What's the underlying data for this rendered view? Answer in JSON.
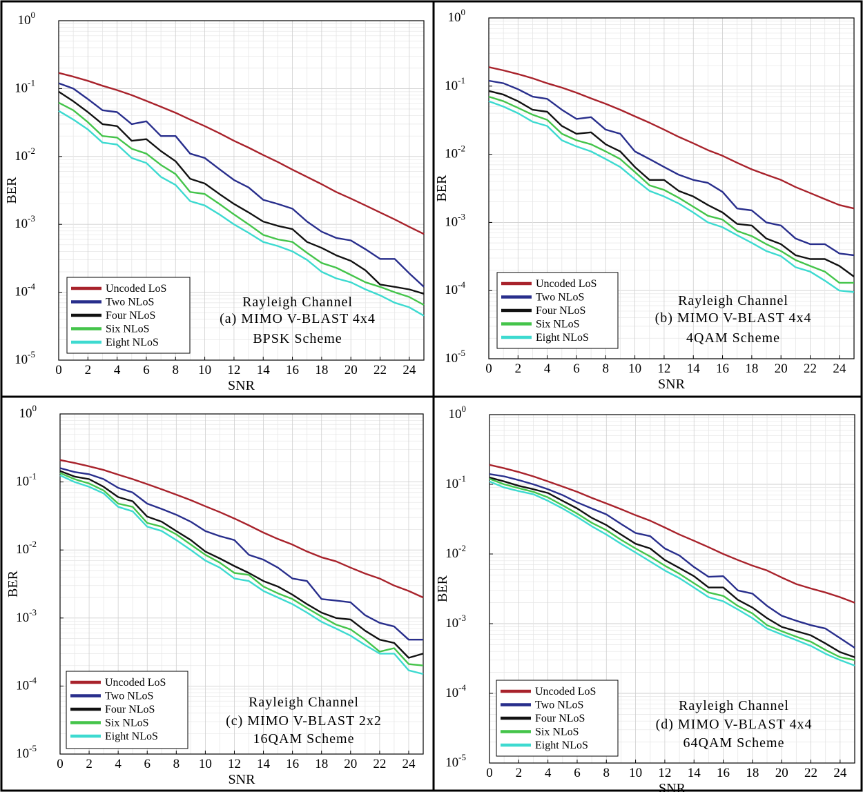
{
  "chart_data": [
    {
      "type": "line",
      "yscale": "log",
      "xlabel": "SNR",
      "ylabel": "BER",
      "xlim": [
        0,
        25
      ],
      "ylim": [
        1e-05,
        1
      ],
      "grid": true,
      "legend_placement": "bottom-left",
      "xticks": [
        "0",
        "2",
        "4",
        "6",
        "8",
        "10",
        "12",
        "14",
        "16",
        "18",
        "20",
        "22",
        "24"
      ],
      "yticks": [
        {
          "base": "10",
          "exp": "0"
        },
        {
          "base": "10",
          "exp": "-1"
        },
        {
          "base": "10",
          "exp": "-2"
        },
        {
          "base": "10",
          "exp": "-3"
        },
        {
          "base": "10",
          "exp": "-4"
        },
        {
          "base": "10",
          "exp": "-5"
        }
      ],
      "annotation": [
        "Rayleigh Channel",
        "(a) MIMO V-BLAST 4x4",
        "BPSK Scheme"
      ],
      "x": [
        0,
        1,
        2,
        3,
        4,
        5,
        6,
        7,
        8,
        9,
        10,
        11,
        12,
        13,
        14,
        15,
        16,
        17,
        18,
        19,
        20,
        21,
        22,
        23,
        24,
        25
      ],
      "series": [
        {
          "name": "Uncoded LoS",
          "color": "#a8222b",
          "values": [
            0.17,
            0.15,
            0.13,
            0.11,
            0.095,
            0.08,
            0.066,
            0.054,
            0.044,
            0.035,
            0.028,
            0.022,
            0.017,
            0.0135,
            0.0105,
            0.0083,
            0.0064,
            0.005,
            0.0039,
            0.003,
            0.0024,
            0.0019,
            0.0015,
            0.00118,
            0.00092,
            0.00072
          ]
        },
        {
          "name": "Two NLoS",
          "color": "#282e8c",
          "values": [
            0.12,
            0.1,
            0.07,
            0.048,
            0.045,
            0.03,
            0.033,
            0.02,
            0.02,
            0.011,
            0.0095,
            0.0065,
            0.0045,
            0.0035,
            0.0023,
            0.002,
            0.0017,
            0.0011,
            0.00078,
            0.00063,
            0.00058,
            0.00043,
            0.00031,
            0.00031,
            0.00019,
            0.00012
          ]
        },
        {
          "name": "Four NLoS",
          "color": "#111111",
          "values": [
            0.09,
            0.065,
            0.045,
            0.03,
            0.028,
            0.017,
            0.018,
            0.012,
            0.0085,
            0.0047,
            0.004,
            0.0028,
            0.002,
            0.0015,
            0.0011,
            0.00095,
            0.00085,
            0.00055,
            0.00045,
            0.00035,
            0.00029,
            0.00021,
            0.00013,
            0.00012,
            0.00011,
            9.5e-05
          ]
        },
        {
          "name": "Six NLoS",
          "color": "#44c44a",
          "values": [
            0.062,
            0.048,
            0.032,
            0.02,
            0.019,
            0.013,
            0.011,
            0.0075,
            0.0055,
            0.003,
            0.0028,
            0.002,
            0.0014,
            0.001,
            0.0007,
            0.0006,
            0.00055,
            0.00038,
            0.00027,
            0.00023,
            0.00018,
            0.00014,
            0.00012,
            0.0001,
            8.5e-05,
            6.5e-05
          ]
        },
        {
          "name": "Eight NLoS",
          "color": "#3ddad0",
          "values": [
            0.047,
            0.035,
            0.025,
            0.016,
            0.015,
            0.0095,
            0.008,
            0.005,
            0.0038,
            0.0022,
            0.0019,
            0.0014,
            0.001,
            0.00075,
            0.00055,
            0.00048,
            0.0004,
            0.0003,
            0.0002,
            0.00016,
            0.00014,
            0.00011,
            9e-05,
            7e-05,
            6e-05,
            4.5e-05
          ]
        }
      ]
    },
    {
      "type": "line",
      "yscale": "log",
      "xlabel": "SNR",
      "ylabel": "BER",
      "xlim": [
        0,
        25
      ],
      "ylim": [
        1e-05,
        1
      ],
      "grid": true,
      "legend_placement": "bottom-left",
      "xticks": [
        "0",
        "2",
        "4",
        "6",
        "8",
        "10",
        "12",
        "14",
        "16",
        "18",
        "20",
        "22",
        "24"
      ],
      "yticks": [
        {
          "base": "10",
          "exp": "0"
        },
        {
          "base": "10",
          "exp": "-1"
        },
        {
          "base": "10",
          "exp": "-2"
        },
        {
          "base": "10",
          "exp": "-3"
        },
        {
          "base": "10",
          "exp": "-4"
        },
        {
          "base": "10",
          "exp": "-5"
        }
      ],
      "annotation": [
        "Rayleigh Channel",
        "(b) MIMO V-BLAST 4x4",
        "4QAM Scheme"
      ],
      "x": [
        0,
        1,
        2,
        3,
        4,
        5,
        6,
        7,
        8,
        9,
        10,
        11,
        12,
        13,
        14,
        15,
        16,
        17,
        18,
        19,
        20,
        21,
        22,
        23,
        24,
        25
      ],
      "series": [
        {
          "name": "Uncoded LoS",
          "color": "#a8222b",
          "values": [
            0.19,
            0.17,
            0.15,
            0.13,
            0.11,
            0.095,
            0.08,
            0.066,
            0.055,
            0.045,
            0.036,
            0.029,
            0.023,
            0.018,
            0.0145,
            0.0115,
            0.0095,
            0.0075,
            0.006,
            0.005,
            0.0042,
            0.0033,
            0.0027,
            0.0022,
            0.0018,
            0.0016
          ]
        },
        {
          "name": "Two NLoS",
          "color": "#282e8c",
          "values": [
            0.12,
            0.11,
            0.09,
            0.07,
            0.065,
            0.045,
            0.033,
            0.035,
            0.023,
            0.02,
            0.011,
            0.0085,
            0.0065,
            0.005,
            0.0042,
            0.0038,
            0.0028,
            0.0016,
            0.0015,
            0.001,
            0.0009,
            0.00058,
            0.00048,
            0.00048,
            0.00035,
            0.00033
          ]
        },
        {
          "name": "Four NLoS",
          "color": "#111111",
          "values": [
            0.085,
            0.075,
            0.06,
            0.045,
            0.042,
            0.026,
            0.02,
            0.021,
            0.014,
            0.011,
            0.0065,
            0.0042,
            0.0042,
            0.0029,
            0.0024,
            0.0018,
            0.0014,
            0.00095,
            0.0009,
            0.00058,
            0.00048,
            0.00033,
            0.00029,
            0.00029,
            0.00023,
            0.00016
          ]
        },
        {
          "name": "Six NLoS",
          "color": "#44c44a",
          "values": [
            0.07,
            0.06,
            0.048,
            0.038,
            0.032,
            0.02,
            0.016,
            0.014,
            0.011,
            0.0085,
            0.0055,
            0.0035,
            0.003,
            0.0023,
            0.0017,
            0.00125,
            0.0011,
            0.00075,
            0.00063,
            0.00048,
            0.00038,
            0.00028,
            0.00023,
            0.00019,
            0.00013,
            0.00013
          ]
        },
        {
          "name": "Eight NLoS",
          "color": "#3ddad0",
          "values": [
            0.06,
            0.05,
            0.04,
            0.03,
            0.026,
            0.016,
            0.013,
            0.011,
            0.0085,
            0.0065,
            0.0043,
            0.0029,
            0.0024,
            0.0019,
            0.0014,
            0.001,
            0.00085,
            0.00065,
            0.0005,
            0.00038,
            0.00032,
            0.00022,
            0.00019,
            0.00014,
            0.0001,
            9.5e-05
          ]
        }
      ]
    },
    {
      "type": "line",
      "yscale": "log",
      "xlabel": "SNR",
      "ylabel": "BER",
      "xlim": [
        0,
        25
      ],
      "ylim": [
        1e-05,
        1
      ],
      "grid": true,
      "legend_placement": "bottom-left",
      "xticks": [
        "0",
        "2",
        "4",
        "6",
        "8",
        "10",
        "12",
        "14",
        "16",
        "18",
        "20",
        "22",
        "24"
      ],
      "yticks": [
        {
          "base": "10",
          "exp": "0"
        },
        {
          "base": "10",
          "exp": "-1"
        },
        {
          "base": "10",
          "exp": "-2"
        },
        {
          "base": "10",
          "exp": "-3"
        },
        {
          "base": "10",
          "exp": "-4"
        },
        {
          "base": "10",
          "exp": "-5"
        }
      ],
      "annotation": [
        "Rayleigh Channel",
        "(c) MIMO V-BLAST 2x2",
        "16QAM Scheme"
      ],
      "x": [
        0,
        1,
        2,
        3,
        4,
        5,
        6,
        7,
        8,
        9,
        10,
        11,
        12,
        13,
        14,
        15,
        16,
        17,
        18,
        19,
        20,
        21,
        22,
        23,
        24,
        25
      ],
      "series": [
        {
          "name": "Uncoded LoS",
          "color": "#a8222b",
          "values": [
            0.21,
            0.19,
            0.17,
            0.15,
            0.128,
            0.11,
            0.093,
            0.078,
            0.065,
            0.054,
            0.044,
            0.036,
            0.029,
            0.023,
            0.018,
            0.0145,
            0.012,
            0.0095,
            0.0078,
            0.0068,
            0.0055,
            0.0045,
            0.0038,
            0.003,
            0.0025,
            0.002
          ]
        },
        {
          "name": "Two NLoS",
          "color": "#282e8c",
          "values": [
            0.16,
            0.14,
            0.13,
            0.11,
            0.082,
            0.07,
            0.048,
            0.04,
            0.033,
            0.026,
            0.019,
            0.016,
            0.014,
            0.0085,
            0.0072,
            0.0055,
            0.0038,
            0.0035,
            0.0019,
            0.0018,
            0.0017,
            0.0011,
            0.00085,
            0.00075,
            0.00048,
            0.00048
          ]
        },
        {
          "name": "Four NLoS",
          "color": "#111111",
          "values": [
            0.145,
            0.12,
            0.11,
            0.085,
            0.06,
            0.052,
            0.031,
            0.026,
            0.019,
            0.014,
            0.0095,
            0.0075,
            0.0058,
            0.0046,
            0.0035,
            0.0029,
            0.0022,
            0.0016,
            0.0012,
            0.001,
            0.00095,
            0.00065,
            0.00048,
            0.00043,
            0.00026,
            0.0003
          ]
        },
        {
          "name": "Six NLoS",
          "color": "#44c44a",
          "values": [
            0.135,
            0.11,
            0.095,
            0.075,
            0.048,
            0.043,
            0.025,
            0.022,
            0.017,
            0.012,
            0.0085,
            0.0065,
            0.0046,
            0.0043,
            0.0029,
            0.0023,
            0.0019,
            0.0014,
            0.00105,
            0.0008,
            0.00068,
            0.00048,
            0.00032,
            0.00036,
            0.00021,
            0.0002
          ]
        },
        {
          "name": "Eight NLoS",
          "color": "#3ddad0",
          "values": [
            0.125,
            0.1,
            0.085,
            0.068,
            0.043,
            0.037,
            0.022,
            0.019,
            0.014,
            0.01,
            0.007,
            0.0055,
            0.0038,
            0.0035,
            0.0025,
            0.002,
            0.0016,
            0.0012,
            0.00088,
            0.0007,
            0.00055,
            0.0004,
            0.0003,
            0.0003,
            0.00017,
            0.00015
          ]
        }
      ]
    },
    {
      "type": "line",
      "yscale": "log",
      "xlabel": "SNR",
      "ylabel": "BER",
      "xlim": [
        0,
        25
      ],
      "ylim": [
        1e-05,
        1
      ],
      "grid": true,
      "legend_placement": "bottom-left",
      "xticks": [
        "0",
        "2",
        "4",
        "6",
        "8",
        "10",
        "12",
        "14",
        "16",
        "18",
        "20",
        "22",
        "24"
      ],
      "yticks": [
        {
          "base": "10",
          "exp": "0"
        },
        {
          "base": "10",
          "exp": "-1"
        },
        {
          "base": "10",
          "exp": "-2"
        },
        {
          "base": "10",
          "exp": "-3"
        },
        {
          "base": "10",
          "exp": "-4"
        },
        {
          "base": "10",
          "exp": "-5"
        }
      ],
      "annotation": [
        "Rayleigh Channel",
        "(d) MIMO V-BLAST 4x4",
        "64QAM Scheme"
      ],
      "x": [
        0,
        1,
        2,
        3,
        4,
        5,
        6,
        7,
        8,
        9,
        10,
        11,
        12,
        13,
        14,
        15,
        16,
        17,
        18,
        19,
        20,
        21,
        22,
        23,
        24,
        25
      ],
      "series": [
        {
          "name": "Uncoded LoS",
          "color": "#a8222b",
          "values": [
            0.19,
            0.17,
            0.15,
            0.13,
            0.11,
            0.093,
            0.078,
            0.064,
            0.053,
            0.044,
            0.036,
            0.03,
            0.024,
            0.019,
            0.0155,
            0.0125,
            0.01,
            0.0082,
            0.0068,
            0.0058,
            0.0046,
            0.0037,
            0.0032,
            0.0028,
            0.0024,
            0.002
          ]
        },
        {
          "name": "Two NLoS",
          "color": "#282e8c",
          "values": [
            0.14,
            0.13,
            0.115,
            0.1,
            0.085,
            0.07,
            0.055,
            0.045,
            0.037,
            0.027,
            0.02,
            0.018,
            0.012,
            0.0095,
            0.0065,
            0.0047,
            0.0048,
            0.003,
            0.0027,
            0.0018,
            0.0013,
            0.0011,
            0.00095,
            0.00085,
            0.00062,
            0.00045
          ]
        },
        {
          "name": "Four NLoS",
          "color": "#111111",
          "values": [
            0.125,
            0.11,
            0.095,
            0.085,
            0.075,
            0.058,
            0.045,
            0.033,
            0.026,
            0.019,
            0.014,
            0.012,
            0.0082,
            0.0063,
            0.0048,
            0.0033,
            0.0033,
            0.0022,
            0.0017,
            0.0012,
            0.0009,
            0.00078,
            0.00068,
            0.00052,
            0.00039,
            0.00033
          ]
        },
        {
          "name": "Six NLoS",
          "color": "#44c44a",
          "values": [
            0.12,
            0.1,
            0.088,
            0.078,
            0.065,
            0.05,
            0.038,
            0.028,
            0.022,
            0.016,
            0.012,
            0.0092,
            0.0068,
            0.0052,
            0.0038,
            0.0028,
            0.0025,
            0.0018,
            0.0014,
            0.00095,
            0.00078,
            0.00065,
            0.00055,
            0.00042,
            0.00033,
            0.0003
          ]
        },
        {
          "name": "Eight NLoS",
          "color": "#3ddad0",
          "values": [
            0.11,
            0.09,
            0.08,
            0.072,
            0.058,
            0.045,
            0.034,
            0.025,
            0.019,
            0.014,
            0.0105,
            0.0078,
            0.0058,
            0.0045,
            0.0033,
            0.0024,
            0.0021,
            0.0016,
            0.0012,
            0.00085,
            0.0007,
            0.00058,
            0.00048,
            0.00037,
            0.0003,
            0.00025
          ]
        }
      ]
    }
  ]
}
